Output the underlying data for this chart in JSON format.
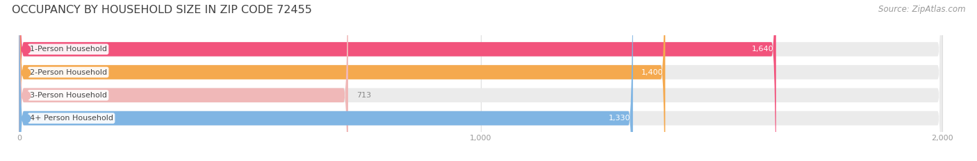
{
  "title": "OCCUPANCY BY HOUSEHOLD SIZE IN ZIP CODE 72455",
  "source": "Source: ZipAtlas.com",
  "categories": [
    "1-Person Household",
    "2-Person Household",
    "3-Person Household",
    "4+ Person Household"
  ],
  "values": [
    1640,
    1400,
    713,
    1330
  ],
  "bar_colors": [
    "#f2537c",
    "#f5a94e",
    "#f0b8b8",
    "#80b5e3"
  ],
  "value_labels": [
    "1,640",
    "1,400",
    "713",
    "1,330"
  ],
  "label_colors": [
    "white",
    "white",
    "#888888",
    "white"
  ],
  "xlim": [
    -20,
    2050
  ],
  "xticks": [
    0,
    1000,
    2000
  ],
  "xtick_labels": [
    "0",
    "1,000",
    "2,000"
  ],
  "background_color": "#ffffff",
  "bar_background_color": "#ebebeb",
  "title_fontsize": 11.5,
  "source_fontsize": 8.5,
  "label_fontsize": 8,
  "value_fontsize": 8,
  "bar_height": 0.62
}
